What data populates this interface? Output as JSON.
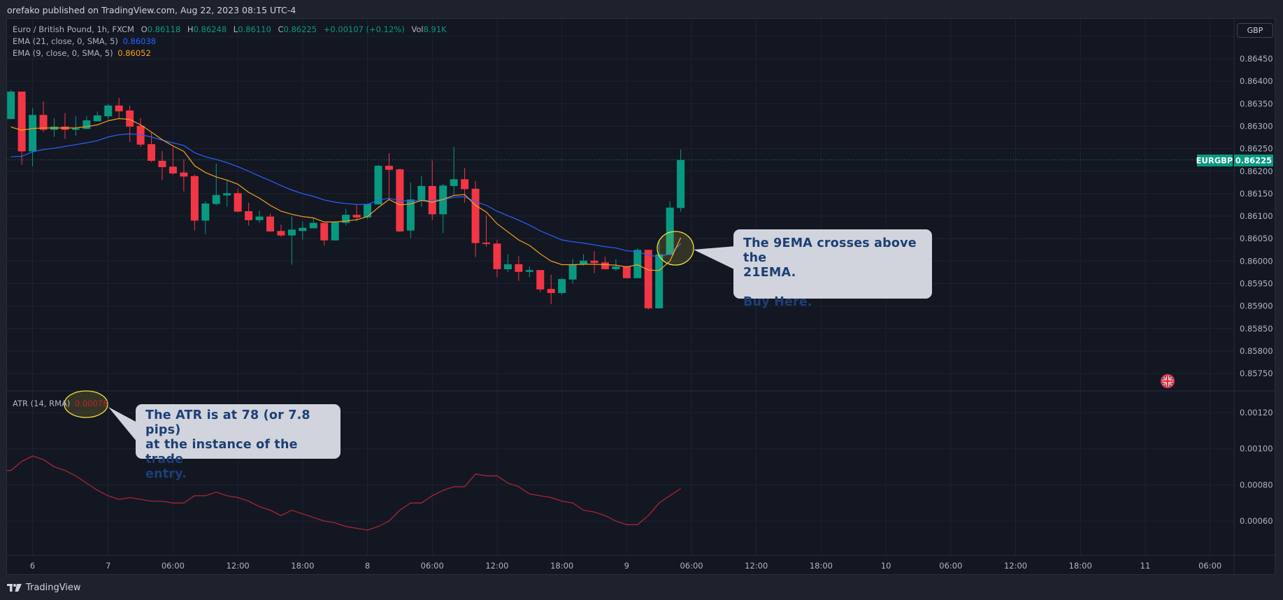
{
  "publish_line": "orefako published on TradingView.com, Aug 22, 2023 08:15 UTC-4",
  "legend": {
    "symbol": "Euro / British Pound, 1h, FXCM",
    "o_label": "O",
    "o": "0.86118",
    "h_label": "H",
    "h": "0.86248",
    "l_label": "L",
    "l": "0.86110",
    "c_label": "C",
    "c": "0.86225",
    "change": "+0.00107 (+0.12%)",
    "vol_label": "Vol",
    "vol": "8.91K",
    "ema21_label": "EMA (21, close, 0, SMA, 5)",
    "ema21_value": "0.86038",
    "ema9_label": "EMA (9, close, 0, SMA, 5)",
    "ema9_value": "0.86052",
    "atr_label": "ATR (14, RMA)",
    "atr_value": "0.00078"
  },
  "currency_button": "GBP",
  "last_price": {
    "symbol": "EURGBP",
    "value": "0.86225",
    "price": 0.86225
  },
  "callouts": {
    "ema_cross": "The 9EMA crosses above the\n21EMA.\n\nBuy Here.",
    "atr": "The ATR is at 78 (or 7.8 pips)\nat the instance of the trade\nentry."
  },
  "footer_logo": "TradingView",
  "icons": {
    "flag": "uk-flag-icon",
    "logo": "tradingview-logo-icon"
  },
  "colors": {
    "up": "#089981",
    "down": "#f23645",
    "ema21": "#2962ff",
    "ema9": "#f7a21b",
    "atr": "#b22833",
    "highlight": "#f0e040",
    "callout_bg": "#d1d4dc",
    "callout_text": "#1c3f75",
    "background": "#131722"
  },
  "chart_data": [
    {
      "type": "candlestick",
      "title": "Euro / British Pound, 1h, FXCM",
      "price_ticks": [
        "0.86450",
        "0.86400",
        "0.86350",
        "0.86300",
        "0.86250",
        "0.86200",
        "0.86150",
        "0.86100",
        "0.86050",
        "0.86000",
        "0.85950",
        "0.85900",
        "0.85850",
        "0.85800",
        "0.85750"
      ],
      "time_labels": [
        "6",
        "7",
        "06:00",
        "12:00",
        "18:00",
        "8",
        "06:00",
        "12:00",
        "18:00",
        "9",
        "06:00",
        "12:00",
        "18:00",
        "10",
        "06:00",
        "12:00",
        "18:00",
        "11",
        "06:00"
      ],
      "ylim": [
        0.8573,
        0.8649
      ],
      "grid": true,
      "candles_ohlc": [
        [
          0.86316,
          0.86381,
          0.86316,
          0.86377
        ],
        [
          0.86377,
          0.86377,
          0.86214,
          0.86244
        ],
        [
          0.86244,
          0.86341,
          0.86211,
          0.86325
        ],
        [
          0.86325,
          0.86355,
          0.86287,
          0.86292
        ],
        [
          0.86292,
          0.86318,
          0.86276,
          0.86299
        ],
        [
          0.86299,
          0.86329,
          0.86272,
          0.86292
        ],
        [
          0.86292,
          0.86322,
          0.86279,
          0.86295
        ],
        [
          0.86294,
          0.86322,
          0.86293,
          0.86313
        ],
        [
          0.86311,
          0.86333,
          0.8631,
          0.86324
        ],
        [
          0.86322,
          0.8635,
          0.86314,
          0.86346
        ],
        [
          0.86346,
          0.86363,
          0.86318,
          0.86333
        ],
        [
          0.86335,
          0.86346,
          0.86265,
          0.86299
        ],
        [
          0.86301,
          0.86318,
          0.86254,
          0.86259
        ],
        [
          0.8626,
          0.86287,
          0.8622,
          0.86223
        ],
        [
          0.86223,
          0.86245,
          0.8618,
          0.86209
        ],
        [
          0.8621,
          0.86253,
          0.86192,
          0.86195
        ],
        [
          0.86197,
          0.86226,
          0.86155,
          0.86188
        ],
        [
          0.86189,
          0.86193,
          0.86068,
          0.8609
        ],
        [
          0.8609,
          0.86133,
          0.8606,
          0.86128
        ],
        [
          0.86127,
          0.86217,
          0.86124,
          0.86147
        ],
        [
          0.86146,
          0.86179,
          0.86121,
          0.86151
        ],
        [
          0.86151,
          0.86161,
          0.86109,
          0.8611
        ],
        [
          0.86111,
          0.8613,
          0.86079,
          0.86091
        ],
        [
          0.86091,
          0.86112,
          0.86085,
          0.86099
        ],
        [
          0.86099,
          0.86106,
          0.86065,
          0.86066
        ],
        [
          0.86067,
          0.86081,
          0.86054,
          0.86057
        ],
        [
          0.86057,
          0.86099,
          0.85992,
          0.8607
        ],
        [
          0.86067,
          0.86088,
          0.86048,
          0.86074
        ],
        [
          0.86073,
          0.86095,
          0.86073,
          0.86085
        ],
        [
          0.86085,
          0.86085,
          0.86035,
          0.86046
        ],
        [
          0.86046,
          0.86087,
          0.86046,
          0.86086
        ],
        [
          0.86085,
          0.86116,
          0.86079,
          0.86103
        ],
        [
          0.86103,
          0.86127,
          0.86088,
          0.86097
        ],
        [
          0.86097,
          0.86127,
          0.86093,
          0.86127
        ],
        [
          0.86126,
          0.86214,
          0.86126,
          0.86212
        ],
        [
          0.86212,
          0.8624,
          0.86138,
          0.86203
        ],
        [
          0.86204,
          0.86206,
          0.86064,
          0.86066
        ],
        [
          0.86068,
          0.86175,
          0.86051,
          0.86137
        ],
        [
          0.86136,
          0.86189,
          0.86121,
          0.86167
        ],
        [
          0.86167,
          0.86224,
          0.86091,
          0.86104
        ],
        [
          0.86104,
          0.86172,
          0.86062,
          0.86168
        ],
        [
          0.86167,
          0.86254,
          0.86147,
          0.86182
        ],
        [
          0.86182,
          0.86207,
          0.8613,
          0.8616
        ],
        [
          0.86161,
          0.86178,
          0.86009,
          0.8604
        ],
        [
          0.86041,
          0.86102,
          0.86032,
          0.86038
        ],
        [
          0.86039,
          0.86047,
          0.85964,
          0.85982
        ],
        [
          0.85982,
          0.86015,
          0.85976,
          0.85993
        ],
        [
          0.85993,
          0.86011,
          0.85956,
          0.85976
        ],
        [
          0.85976,
          0.85988,
          0.85964,
          0.8598
        ],
        [
          0.8598,
          0.8598,
          0.85931,
          0.85937
        ],
        [
          0.85938,
          0.8597,
          0.85904,
          0.85929
        ],
        [
          0.85929,
          0.85963,
          0.85925,
          0.8596
        ],
        [
          0.85959,
          0.86005,
          0.8595,
          0.85993
        ],
        [
          0.85992,
          0.86015,
          0.8599,
          0.86001
        ],
        [
          0.86001,
          0.86022,
          0.85973,
          0.85996
        ],
        [
          0.85997,
          0.8601,
          0.85982,
          0.85982
        ],
        [
          0.85982,
          0.86004,
          0.85978,
          0.85988
        ],
        [
          0.85988,
          0.8599,
          0.85962,
          0.85962
        ],
        [
          0.85962,
          0.86029,
          0.85962,
          0.86025
        ],
        [
          0.86025,
          0.86025,
          0.85892,
          0.85895
        ],
        [
          0.85895,
          0.86044,
          0.85895,
          0.86015
        ],
        [
          0.86014,
          0.86133,
          0.86014,
          0.86119
        ],
        [
          0.86118,
          0.86248,
          0.8611,
          0.86225
        ]
      ],
      "series": [
        {
          "name": "EMA (21, close, 0, SMA, 5)",
          "color": "#2962ff",
          "values": [
            0.86232,
            0.86233,
            0.86243,
            0.86248,
            0.86251,
            0.86255,
            0.86259,
            0.86263,
            0.86268,
            0.86276,
            0.86281,
            0.86283,
            0.86281,
            0.86276,
            0.86269,
            0.86263,
            0.86257,
            0.86241,
            0.86232,
            0.86226,
            0.86219,
            0.8621,
            0.862,
            0.86189,
            0.86179,
            0.86168,
            0.86158,
            0.8615,
            0.86144,
            0.86136,
            0.86131,
            0.86128,
            0.86126,
            0.86126,
            0.86135,
            0.8614,
            0.86134,
            0.86134,
            0.86135,
            0.86135,
            0.86137,
            0.86142,
            0.86143,
            0.86132,
            0.86124,
            0.86111,
            0.86101,
            0.86091,
            0.8608,
            0.86067,
            0.86057,
            0.86047,
            0.86043,
            0.8604,
            0.86036,
            0.86032,
            0.86029,
            0.86023,
            0.86021,
            0.86013,
            0.8601,
            0.86016,
            0.86039
          ]
        },
        {
          "name": "EMA (9, close, 0, SMA, 5)",
          "color": "#f7a21b",
          "values": [
            0.86298,
            0.86291,
            0.86295,
            0.86296,
            0.86296,
            0.86296,
            0.86296,
            0.86299,
            0.86303,
            0.86312,
            0.86317,
            0.86315,
            0.86303,
            0.86287,
            0.8627,
            0.86256,
            0.86244,
            0.86212,
            0.86197,
            0.86187,
            0.8618,
            0.86171,
            0.86153,
            0.8614,
            0.86124,
            0.86111,
            0.86104,
            0.86099,
            0.86096,
            0.86087,
            0.86087,
            0.86089,
            0.86092,
            0.86099,
            0.86119,
            0.86137,
            0.86125,
            0.86127,
            0.86135,
            0.86131,
            0.86137,
            0.86146,
            0.86148,
            0.86124,
            0.86109,
            0.86083,
            0.86065,
            0.86047,
            0.86035,
            0.86016,
            0.86,
            0.85992,
            0.85992,
            0.85993,
            0.85993,
            0.85992,
            0.85991,
            0.85987,
            0.85992,
            0.8598,
            0.85979,
            0.86,
            0.86052
          ]
        }
      ]
    },
    {
      "type": "line",
      "title": "ATR (14, RMA)",
      "ticks": [
        "0.00120",
        "0.00100",
        "0.00080",
        "0.00060"
      ],
      "ylim": [
        0.0004,
        0.0013
      ],
      "series": [
        {
          "name": "ATR (14, RMA)",
          "color": "#b22833",
          "values": [
            0.00088,
            0.00093,
            0.00096,
            0.00094,
            0.0009,
            0.00088,
            0.00085,
            0.00081,
            0.00077,
            0.00074,
            0.00072,
            0.00073,
            0.00072,
            0.00071,
            0.00071,
            0.0007,
            0.0007,
            0.00074,
            0.00074,
            0.00076,
            0.00074,
            0.00073,
            0.00071,
            0.00068,
            0.00066,
            0.00063,
            0.00066,
            0.00064,
            0.00062,
            0.0006,
            0.00059,
            0.00057,
            0.00056,
            0.00055,
            0.00057,
            0.0006,
            0.00066,
            0.0007,
            0.0007,
            0.00074,
            0.00077,
            0.00079,
            0.00079,
            0.00086,
            0.00085,
            0.00085,
            0.00081,
            0.00079,
            0.00075,
            0.00074,
            0.00073,
            0.00071,
            0.0007,
            0.00066,
            0.00065,
            0.00063,
            0.0006,
            0.00058,
            0.00058,
            0.00063,
            0.0007,
            0.00074,
            0.00078
          ]
        }
      ]
    }
  ]
}
